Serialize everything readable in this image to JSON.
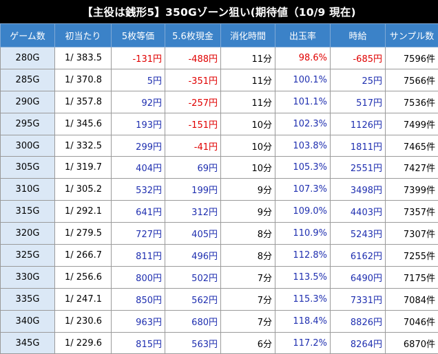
{
  "title": "【主役は銭形5】350Gゾーン狙い(期待値（10/9 現在)",
  "headers": [
    "ゲーム数",
    "初当たり",
    "5枚等価",
    "5.6枚現金",
    "消化時間",
    "出玉率",
    "時給",
    "サンプル数"
  ],
  "rows": [
    {
      "game": "280G",
      "hit": "1/ 383.5",
      "eq5": "-131円",
      "cash56": "-488円",
      "time": "11分",
      "rate": "98.6%",
      "hourly": "-685円",
      "samples": "7596件"
    },
    {
      "game": "285G",
      "hit": "1/ 370.8",
      "eq5": "5円",
      "cash56": "-351円",
      "time": "11分",
      "rate": "100.1%",
      "hourly": "25円",
      "samples": "7566件"
    },
    {
      "game": "290G",
      "hit": "1/ 357.8",
      "eq5": "92円",
      "cash56": "-257円",
      "time": "11分",
      "rate": "101.1%",
      "hourly": "517円",
      "samples": "7536件"
    },
    {
      "game": "295G",
      "hit": "1/ 345.6",
      "eq5": "193円",
      "cash56": "-151円",
      "time": "10分",
      "rate": "102.3%",
      "hourly": "1126円",
      "samples": "7499件"
    },
    {
      "game": "300G",
      "hit": "1/ 332.5",
      "eq5": "299円",
      "cash56": "-41円",
      "time": "10分",
      "rate": "103.8%",
      "hourly": "1811円",
      "samples": "7465件"
    },
    {
      "game": "305G",
      "hit": "1/ 319.7",
      "eq5": "404円",
      "cash56": "69円",
      "time": "10分",
      "rate": "105.3%",
      "hourly": "2551円",
      "samples": "7427件"
    },
    {
      "game": "310G",
      "hit": "1/ 305.2",
      "eq5": "532円",
      "cash56": "199円",
      "time": "9分",
      "rate": "107.3%",
      "hourly": "3498円",
      "samples": "7399件"
    },
    {
      "game": "315G",
      "hit": "1/ 292.1",
      "eq5": "641円",
      "cash56": "312円",
      "time": "9分",
      "rate": "109.0%",
      "hourly": "4403円",
      "samples": "7357件"
    },
    {
      "game": "320G",
      "hit": "1/ 279.5",
      "eq5": "727円",
      "cash56": "405円",
      "time": "8分",
      "rate": "110.9%",
      "hourly": "5243円",
      "samples": "7307件"
    },
    {
      "game": "325G",
      "hit": "1/ 266.7",
      "eq5": "811円",
      "cash56": "496円",
      "time": "8分",
      "rate": "112.8%",
      "hourly": "6162円",
      "samples": "7255件"
    },
    {
      "game": "330G",
      "hit": "1/ 256.6",
      "eq5": "800円",
      "cash56": "502円",
      "time": "7分",
      "rate": "113.5%",
      "hourly": "6490円",
      "samples": "7175件"
    },
    {
      "game": "335G",
      "hit": "1/ 247.1",
      "eq5": "850円",
      "cash56": "562円",
      "time": "7分",
      "rate": "115.3%",
      "hourly": "7331円",
      "samples": "7084件"
    },
    {
      "game": "340G",
      "hit": "1/ 230.6",
      "eq5": "963円",
      "cash56": "680円",
      "time": "7分",
      "rate": "118.4%",
      "hourly": "8826円",
      "samples": "7046件"
    },
    {
      "game": "345G",
      "hit": "1/ 229.6",
      "eq5": "815円",
      "cash56": "563円",
      "time": "6分",
      "rate": "117.2%",
      "hourly": "8264円",
      "samples": "6870件"
    }
  ],
  "colors": {
    "header_bg": "#3b82c8",
    "game_col_bg": "#dbe8f6",
    "negative": "#e00000",
    "positive": "#1f2fb0"
  }
}
